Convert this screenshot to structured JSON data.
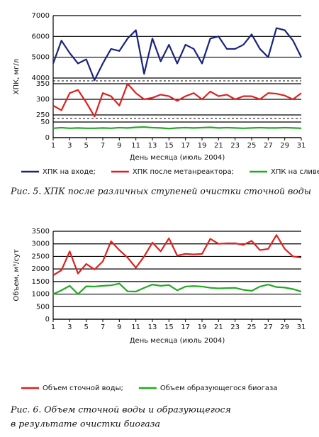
{
  "chart_data": [
    {
      "type": "line",
      "y_label": "ХПК, мг/л",
      "x_label": "День месяца (июль 2004)",
      "caption": "Рис. 5. ХПК после различных ступеней очистки сточной воды",
      "x": [
        1,
        2,
        3,
        4,
        5,
        6,
        7,
        8,
        9,
        10,
        11,
        12,
        13,
        14,
        15,
        16,
        17,
        18,
        19,
        20,
        21,
        22,
        23,
        24,
        25,
        26,
        27,
        28,
        29,
        30,
        31
      ],
      "xlim": [
        1,
        31
      ],
      "xticks": [
        1,
        3,
        5,
        7,
        9,
        11,
        13,
        15,
        17,
        19,
        21,
        23,
        25,
        27,
        29,
        31
      ],
      "ylim_segments": [
        [
          0,
          50
        ],
        [
          250,
          350
        ],
        [
          4000,
          7000
        ]
      ],
      "yticks": [
        0,
        50,
        250,
        300,
        350,
        4000,
        5000,
        6000,
        7000
      ],
      "grid": true,
      "series": [
        {
          "name": "ХПК на входе;",
          "color": "#1a237e",
          "values": [
            4700,
            5800,
            5200,
            4700,
            4900,
            3900,
            4700,
            5400,
            5300,
            5900,
            6300,
            4200,
            5900,
            4800,
            5600,
            4700,
            5600,
            5400,
            4700,
            5900,
            6000,
            5400,
            5400,
            5600,
            6100,
            5400,
            5000,
            6400,
            6300,
            5800,
            5000
          ]
        },
        {
          "name": "ХПК после метанреактора;",
          "color": "#e02020",
          "values": [
            280,
            265,
            320,
            330,
            290,
            245,
            320,
            310,
            280,
            350,
            320,
            300,
            305,
            315,
            310,
            295,
            310,
            320,
            300,
            325,
            310,
            315,
            300,
            310,
            310,
            300,
            320,
            318,
            312,
            300,
            320
          ]
        },
        {
          "name": "ХПК на сливе",
          "color": "#22aa22",
          "values": [
            30,
            32,
            30,
            31,
            30,
            30,
            31,
            30,
            32,
            31,
            33,
            34,
            32,
            31,
            29,
            31,
            32,
            31,
            32,
            33,
            31,
            32,
            31,
            30,
            31,
            32,
            31,
            31,
            32,
            31,
            30
          ]
        }
      ]
    },
    {
      "type": "line",
      "y_label": "Объем, м³/сут",
      "x_label": "День месяца (июль 2004)",
      "caption": [
        "Рис. 6. Объем сточной воды и образующегося",
        "в результате очистки биогаза"
      ],
      "x": [
        1,
        2,
        3,
        4,
        5,
        6,
        7,
        8,
        9,
        10,
        11,
        12,
        13,
        14,
        15,
        16,
        17,
        18,
        19,
        20,
        21,
        22,
        23,
        24,
        25,
        26,
        27,
        28,
        29,
        30,
        31
      ],
      "xlim": [
        1,
        31
      ],
      "xticks": [
        1,
        3,
        5,
        7,
        9,
        11,
        13,
        15,
        17,
        19,
        21,
        23,
        25,
        27,
        29,
        31
      ],
      "ylim": [
        0,
        3500
      ],
      "yticks": [
        0,
        500,
        1000,
        1500,
        2000,
        2500,
        3000,
        3500
      ],
      "grid": true,
      "series": [
        {
          "name": "Объем сточной воды;",
          "color": "#e02020",
          "values": [
            1750,
            1950,
            2700,
            1820,
            2200,
            1980,
            2300,
            3100,
            2750,
            2450,
            2050,
            2500,
            3050,
            2700,
            3220,
            2530,
            2600,
            2580,
            2600,
            3200,
            3000,
            3020,
            3020,
            2960,
            3120,
            2750,
            2800,
            3350,
            2800,
            2500,
            2450
          ]
        },
        {
          "name": "Объем образующегося биогаза",
          "color": "#22aa22",
          "values": [
            1000,
            1150,
            1330,
            1000,
            1310,
            1300,
            1330,
            1350,
            1420,
            1110,
            1100,
            1250,
            1380,
            1330,
            1360,
            1150,
            1300,
            1320,
            1300,
            1250,
            1230,
            1240,
            1250,
            1170,
            1130,
            1300,
            1380,
            1280,
            1260,
            1200,
            1100
          ]
        }
      ]
    }
  ]
}
